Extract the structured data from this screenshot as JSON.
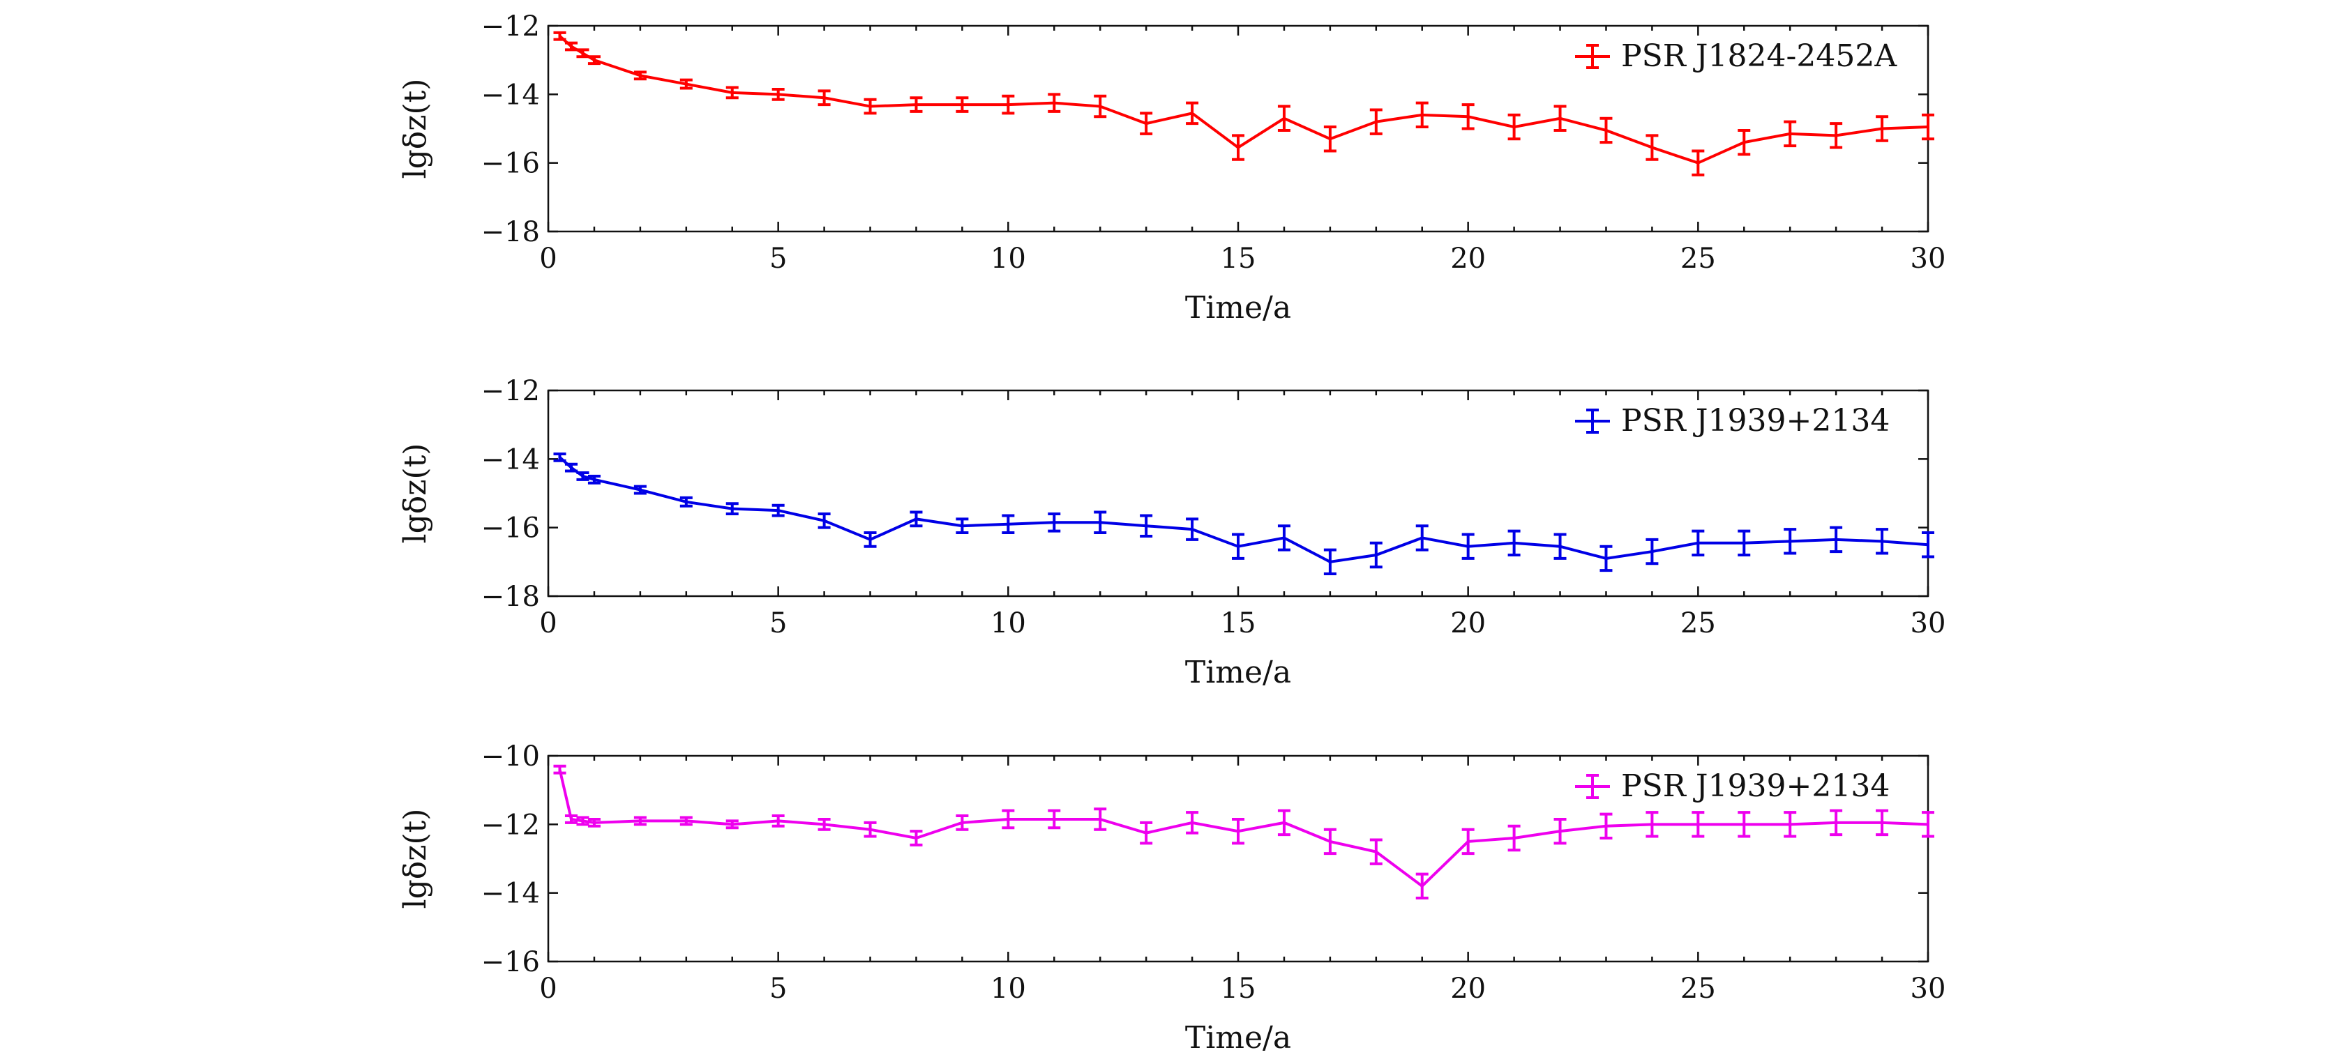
{
  "chart_data": [
    {
      "type": "line",
      "xlabel": "Time/a",
      "ylabel": "lgδz(t)",
      "xlim": [
        0,
        30
      ],
      "ylim": [
        -18,
        -12
      ],
      "xticks": [
        0,
        5,
        10,
        15,
        20,
        25,
        30
      ],
      "yticks": [
        -12,
        -14,
        -16,
        -18
      ],
      "grid": false,
      "legend_position": "top-right",
      "series": [
        {
          "name": "PSR J1824-2452A",
          "color": "#ff0000",
          "x": [
            0.25,
            0.5,
            0.75,
            1,
            2,
            3,
            4,
            5,
            6,
            7,
            8,
            9,
            10,
            11,
            12,
            13,
            14,
            15,
            16,
            17,
            18,
            19,
            20,
            21,
            22,
            23,
            24,
            25,
            26,
            27,
            28,
            29,
            30
          ],
          "y": [
            -12.3,
            -12.6,
            -12.8,
            -13.0,
            -13.45,
            -13.7,
            -13.95,
            -14.0,
            -14.1,
            -14.35,
            -14.3,
            -14.3,
            -14.3,
            -14.25,
            -14.35,
            -14.85,
            -14.55,
            -15.55,
            -14.7,
            -15.3,
            -14.8,
            -14.6,
            -14.65,
            -14.95,
            -14.7,
            -15.05,
            -15.55,
            -16.0,
            -15.4,
            -15.15,
            -15.2,
            -15.0,
            -14.95
          ],
          "err": [
            0.1,
            0.1,
            0.1,
            0.1,
            0.1,
            0.12,
            0.15,
            0.15,
            0.2,
            0.2,
            0.2,
            0.2,
            0.25,
            0.25,
            0.3,
            0.3,
            0.3,
            0.35,
            0.35,
            0.35,
            0.35,
            0.35,
            0.35,
            0.35,
            0.35,
            0.35,
            0.35,
            0.35,
            0.35,
            0.35,
            0.35,
            0.35,
            0.35
          ]
        }
      ]
    },
    {
      "type": "line",
      "xlabel": "Time/a",
      "ylabel": "lgδz(t)",
      "xlim": [
        0,
        30
      ],
      "ylim": [
        -18,
        -12
      ],
      "xticks": [
        0,
        5,
        10,
        15,
        20,
        25,
        30
      ],
      "yticks": [
        -12,
        -14,
        -16,
        -18
      ],
      "grid": false,
      "legend_position": "top-right",
      "series": [
        {
          "name": "PSR J1939+2134",
          "color": "#0000e6",
          "x": [
            0.25,
            0.5,
            0.75,
            1,
            2,
            3,
            4,
            5,
            6,
            7,
            8,
            9,
            10,
            11,
            12,
            13,
            14,
            15,
            16,
            17,
            18,
            19,
            20,
            21,
            22,
            23,
            24,
            25,
            26,
            27,
            28,
            29,
            30
          ],
          "y": [
            -13.95,
            -14.25,
            -14.5,
            -14.6,
            -14.9,
            -15.25,
            -15.45,
            -15.5,
            -15.8,
            -16.35,
            -15.75,
            -15.95,
            -15.9,
            -15.85,
            -15.85,
            -15.95,
            -16.05,
            -16.55,
            -16.3,
            -17.0,
            -16.8,
            -16.3,
            -16.55,
            -16.45,
            -16.55,
            -16.9,
            -16.7,
            -16.45,
            -16.45,
            -16.4,
            -16.35,
            -16.4,
            -16.5
          ],
          "err": [
            0.1,
            0.1,
            0.1,
            0.1,
            0.1,
            0.12,
            0.15,
            0.15,
            0.2,
            0.2,
            0.2,
            0.2,
            0.25,
            0.25,
            0.3,
            0.3,
            0.3,
            0.35,
            0.35,
            0.35,
            0.35,
            0.35,
            0.35,
            0.35,
            0.35,
            0.35,
            0.35,
            0.35,
            0.35,
            0.35,
            0.35,
            0.35,
            0.35
          ]
        }
      ]
    },
    {
      "type": "line",
      "xlabel": "Time/a",
      "ylabel": "lgδz(t)",
      "xlim": [
        0,
        30
      ],
      "ylim": [
        -16,
        -10
      ],
      "xticks": [
        0,
        5,
        10,
        15,
        20,
        25,
        30
      ],
      "yticks": [
        -10,
        -12,
        -14,
        -16
      ],
      "grid": false,
      "legend_position": "top-right",
      "series": [
        {
          "name": "PSR J1939+2134",
          "color": "#ee00ee",
          "x": [
            0.25,
            0.5,
            0.75,
            1,
            2,
            3,
            4,
            5,
            6,
            7,
            8,
            9,
            10,
            11,
            12,
            13,
            14,
            15,
            16,
            17,
            18,
            19,
            20,
            21,
            22,
            23,
            24,
            25,
            26,
            27,
            28,
            29,
            30
          ],
          "y": [
            -10.4,
            -11.85,
            -11.9,
            -11.95,
            -11.9,
            -11.9,
            -12.0,
            -11.9,
            -12.0,
            -12.15,
            -12.4,
            -11.95,
            -11.85,
            -11.85,
            -11.85,
            -12.25,
            -11.95,
            -12.2,
            -11.95,
            -12.5,
            -12.8,
            -13.8,
            -12.5,
            -12.4,
            -12.2,
            -12.05,
            -12.0,
            -12.0,
            -12.0,
            -12.0,
            -11.95,
            -11.95,
            -12.0
          ],
          "err": [
            0.1,
            0.1,
            0.1,
            0.1,
            0.1,
            0.1,
            0.1,
            0.15,
            0.15,
            0.2,
            0.2,
            0.2,
            0.25,
            0.25,
            0.3,
            0.3,
            0.3,
            0.35,
            0.35,
            0.35,
            0.35,
            0.35,
            0.35,
            0.35,
            0.35,
            0.35,
            0.35,
            0.35,
            0.35,
            0.35,
            0.35,
            0.35,
            0.35
          ]
        }
      ]
    }
  ]
}
